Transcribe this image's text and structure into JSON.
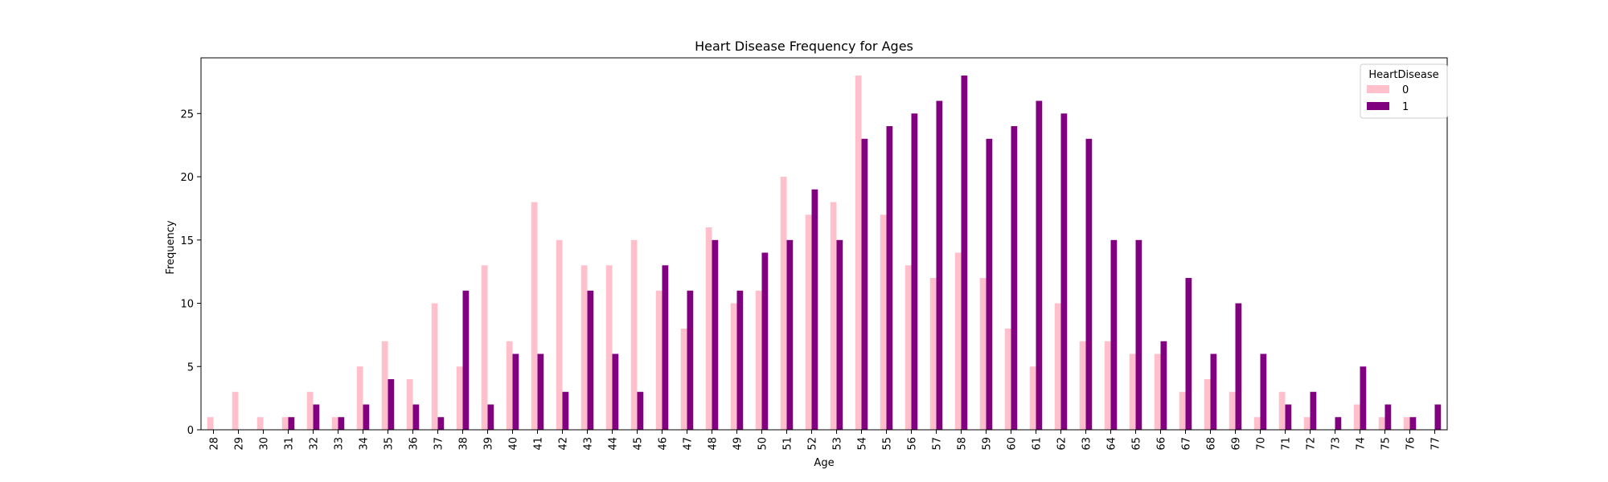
{
  "chart_data": {
    "type": "bar",
    "title": "Heart Disease Frequency for Ages",
    "xlabel": "Age",
    "ylabel": "Frequency",
    "ylim": [
      0,
      29.4
    ],
    "yticks": [
      0,
      5,
      10,
      15,
      20,
      25
    ],
    "legend": {
      "title": "HeartDisease",
      "placement": "top-right"
    },
    "categories": [
      "28",
      "29",
      "30",
      "31",
      "32",
      "33",
      "34",
      "35",
      "36",
      "37",
      "38",
      "39",
      "40",
      "41",
      "42",
      "43",
      "44",
      "45",
      "46",
      "47",
      "48",
      "49",
      "50",
      "51",
      "52",
      "53",
      "54",
      "55",
      "56",
      "57",
      "58",
      "59",
      "60",
      "61",
      "62",
      "63",
      "64",
      "65",
      "66",
      "67",
      "68",
      "69",
      "70",
      "71",
      "72",
      "73",
      "74",
      "75",
      "76",
      "77"
    ],
    "series": [
      {
        "name": "0",
        "color": "#ffc0cb",
        "values": [
          1,
          3,
          1,
          1,
          3,
          1,
          5,
          7,
          4,
          10,
          5,
          13,
          7,
          18,
          15,
          13,
          13,
          15,
          11,
          8,
          16,
          10,
          11,
          20,
          17,
          18,
          28,
          17,
          13,
          12,
          14,
          12,
          8,
          5,
          10,
          7,
          7,
          6,
          6,
          3,
          4,
          3,
          1,
          3,
          1,
          0,
          2,
          1,
          1,
          0
        ]
      },
      {
        "name": "1",
        "color": "#800080",
        "values": [
          0,
          0,
          0,
          1,
          2,
          1,
          2,
          4,
          2,
          1,
          11,
          2,
          6,
          6,
          3,
          11,
          6,
          3,
          13,
          11,
          15,
          11,
          14,
          15,
          19,
          15,
          23,
          24,
          25,
          26,
          28,
          23,
          24,
          26,
          25,
          23,
          15,
          15,
          7,
          12,
          6,
          10,
          6,
          2,
          3,
          1,
          5,
          2,
          1,
          2
        ]
      }
    ]
  }
}
